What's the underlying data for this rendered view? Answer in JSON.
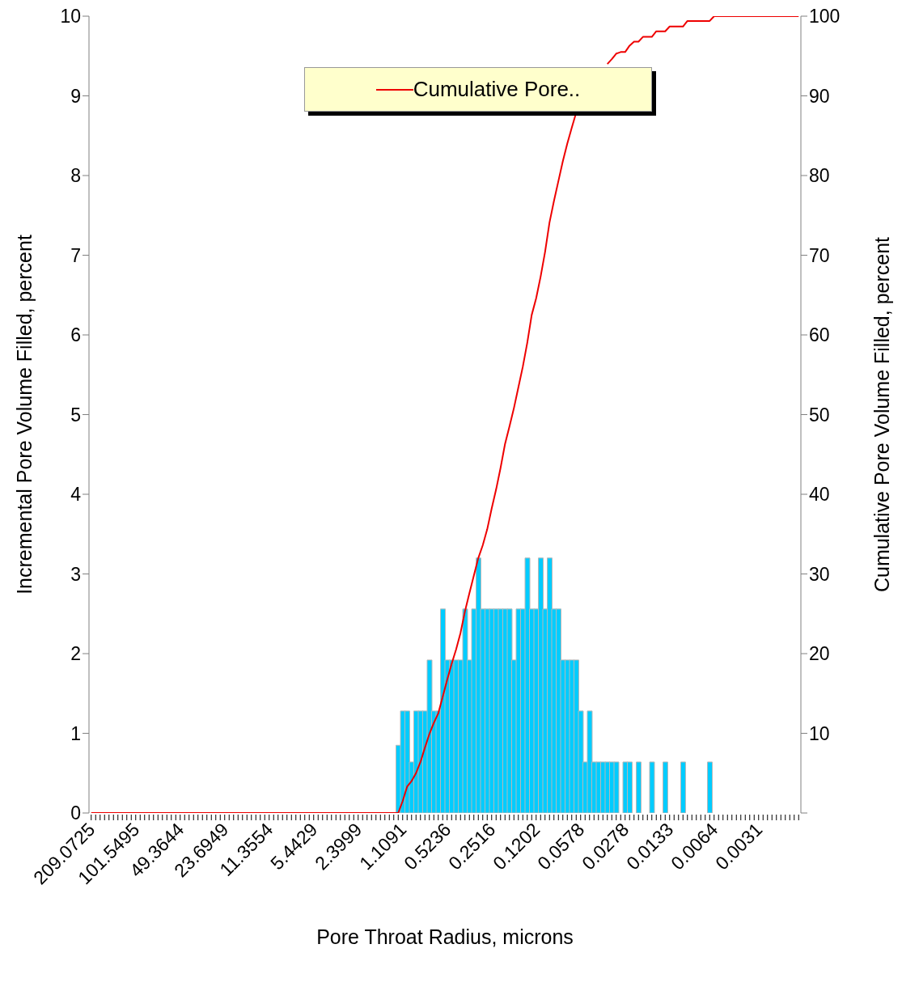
{
  "chart_data": {
    "type": "bar",
    "xlabel": "Pore Throat Radius, microns",
    "ylabel": "Incremental Pore Volume Filled, percent",
    "y2label": "Cumulative Pore Volume Filled, percent",
    "categories": [
      "209.0725",
      null,
      null,
      null,
      null,
      null,
      null,
      null,
      null,
      null,
      "101.5495",
      null,
      null,
      null,
      null,
      null,
      null,
      null,
      null,
      null,
      "49.3644",
      null,
      null,
      null,
      null,
      null,
      null,
      null,
      null,
      null,
      "23.6949",
      null,
      null,
      null,
      null,
      null,
      null,
      null,
      null,
      null,
      "11.3554",
      null,
      null,
      null,
      null,
      null,
      null,
      null,
      null,
      null,
      "5.4429",
      null,
      null,
      null,
      null,
      null,
      null,
      null,
      null,
      null,
      "2.3999",
      null,
      null,
      null,
      null,
      null,
      null,
      null,
      null,
      null,
      "1.1091",
      null,
      null,
      null,
      null,
      null,
      null,
      null,
      null,
      null,
      "0.5236",
      null,
      null,
      null,
      null,
      null,
      null,
      null,
      null,
      null,
      "0.2516",
      null,
      null,
      null,
      null,
      null,
      null,
      null,
      null,
      null,
      "0.1202",
      null,
      null,
      null,
      null,
      null,
      null,
      null,
      null,
      null,
      "0.0578",
      null,
      null,
      null,
      null,
      null,
      null,
      null,
      null,
      null,
      "0.0278",
      null,
      null,
      null,
      null,
      null,
      null,
      null,
      null,
      null,
      "0.0133",
      null,
      null,
      null,
      null,
      null,
      null,
      null,
      null,
      null,
      "0.0064",
      null,
      null,
      null,
      null,
      null,
      null,
      null,
      null,
      null,
      "0.0031",
      null,
      null,
      null,
      null,
      null,
      null,
      null,
      null,
      null
    ],
    "series": [
      {
        "color": "#00ccff",
        "values": [
          0,
          0,
          0,
          0,
          0,
          0,
          0,
          0,
          0,
          0,
          0,
          0,
          0,
          0,
          0,
          0,
          0,
          0,
          0,
          0,
          0,
          0,
          0,
          0,
          0,
          0,
          0,
          0,
          0,
          0,
          0,
          0,
          0,
          0,
          0,
          0,
          0,
          0,
          0,
          0,
          0,
          0,
          0,
          0,
          0,
          0,
          0,
          0,
          0,
          0,
          0,
          0,
          0,
          0,
          0,
          0,
          0,
          0,
          0,
          0,
          0,
          0,
          0,
          0,
          0,
          0,
          0,
          0,
          0,
          0.85,
          1.28,
          1.28,
          0.64,
          1.28,
          1.28,
          1.28,
          1.92,
          1.28,
          1.28,
          2.56,
          1.92,
          1.92,
          1.92,
          1.92,
          2.56,
          1.92,
          2.56,
          3.2,
          2.56,
          2.56,
          2.56,
          2.56,
          2.56,
          2.56,
          2.56,
          1.92,
          2.56,
          2.56,
          3.2,
          2.56,
          2.56,
          3.2,
          2.56,
          3.2,
          2.56,
          2.56,
          1.92,
          1.92,
          1.92,
          1.92,
          1.28,
          0.64,
          1.28,
          0.64,
          0.64,
          0.64,
          0.64,
          0.64,
          0.64,
          0,
          0.64,
          0.64,
          0,
          0.64,
          0,
          0,
          0.64,
          0,
          0,
          0.64,
          0,
          0,
          0,
          0.64,
          0,
          0,
          0,
          0,
          0,
          0.64,
          0,
          0,
          0,
          0,
          0,
          0,
          0,
          0,
          0,
          0,
          0,
          0,
          0,
          0,
          0,
          0,
          0,
          0,
          0,
          0
        ]
      },
      {
        "type": "line",
        "name": "Cumulative Pore..",
        "color": "#ee0000",
        "axis": "y2",
        "values": [
          0,
          0,
          0,
          0,
          0,
          0,
          0,
          0,
          0,
          0,
          0,
          0,
          0,
          0,
          0,
          0,
          0,
          0,
          0,
          0,
          0,
          0,
          0,
          0,
          0,
          0,
          0,
          0,
          0,
          0,
          0,
          0,
          0,
          0,
          0,
          0,
          0,
          0,
          0,
          0,
          0,
          0,
          0,
          0,
          0,
          0,
          0,
          0,
          0,
          0,
          0,
          0,
          0,
          0,
          0,
          0,
          0,
          0,
          0,
          0,
          0,
          0,
          0,
          0,
          0,
          0,
          0,
          0,
          0,
          0,
          1.5,
          3.3,
          4,
          5,
          6.4,
          8.2,
          9.9,
          11.3,
          12.5,
          14.6,
          16.7,
          18.7,
          20.5,
          22.6,
          25.3,
          27.6,
          29.8,
          32,
          33.6,
          35.6,
          38.2,
          40.6,
          43.3,
          46.3,
          48.5,
          50.8,
          53.4,
          56,
          59,
          62.5,
          64.6,
          67.3,
          70.4,
          74.1,
          76.8,
          79.3,
          81.8,
          84,
          86,
          87.9,
          null,
          null,
          null,
          null,
          null,
          null,
          94,
          94.6,
          95.3,
          95.5,
          95.5,
          96.3,
          96.8,
          96.8,
          97.4,
          97.4,
          97.4,
          98.1,
          98.1,
          98.1,
          98.7,
          98.7,
          98.7,
          98.7,
          99.4,
          99.4,
          99.4,
          99.4,
          99.4,
          99.4,
          100,
          100,
          100,
          100,
          100,
          100,
          100,
          100,
          100,
          100,
          100,
          100,
          100,
          100,
          100,
          100,
          100,
          100,
          100,
          100
        ]
      }
    ],
    "ylim": [
      0,
      10
    ],
    "yticks": [
      0,
      1,
      2,
      3,
      4,
      5,
      6,
      7,
      8,
      9,
      10
    ],
    "y2lim": [
      0,
      100
    ],
    "y2ticks": [
      {
        "value": 0,
        "label": null
      },
      10,
      20,
      30,
      40,
      50,
      60,
      70,
      80,
      90,
      100
    ],
    "legend": "top"
  }
}
